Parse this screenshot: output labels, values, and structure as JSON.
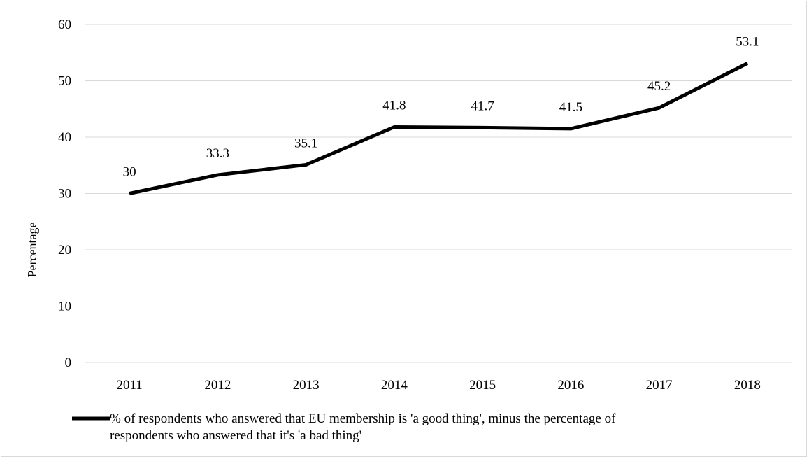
{
  "chart_data": {
    "type": "line",
    "title": "",
    "xlabel": "",
    "ylabel": "Percentage",
    "ylim": [
      0,
      60
    ],
    "y_ticks": [
      "0",
      "10",
      "20",
      "30",
      "40",
      "50",
      "60"
    ],
    "categories": [
      "2011",
      "2012",
      "2013",
      "2014",
      "2015",
      "2016",
      "2017",
      "2018"
    ],
    "series": [
      {
        "values": [
          30,
          33.3,
          35.1,
          41.8,
          41.7,
          41.5,
          45.2,
          53.1
        ],
        "labels": [
          "30",
          "33.3",
          "35.1",
          "41.8",
          "41.7",
          "41.5",
          "45.2",
          "53.1"
        ],
        "color": "#000000"
      }
    ],
    "grid": true,
    "legend": {
      "placement": "bottom",
      "lines": [
        "% of respondents who answered that EU membership is 'a good thing', minus the percentage of",
        "respondents who answered that it's 'a bad thing'"
      ]
    }
  }
}
